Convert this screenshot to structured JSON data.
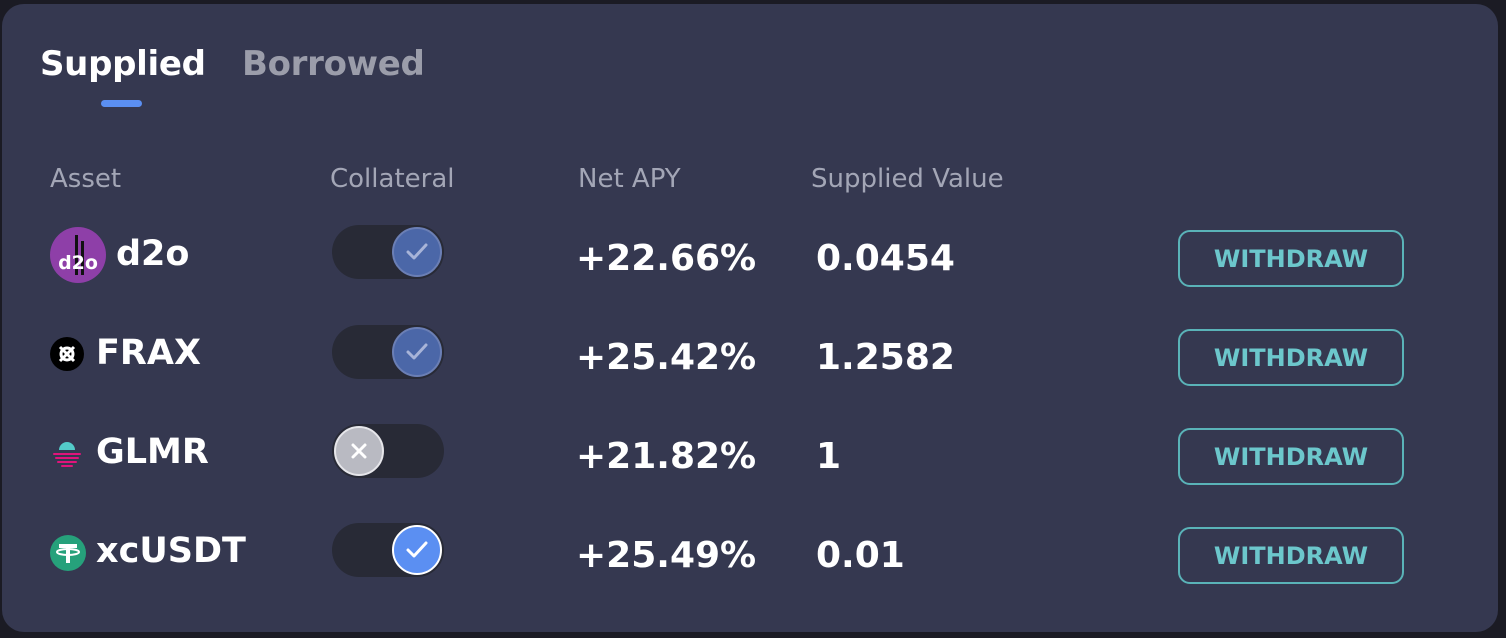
{
  "tabs": [
    {
      "label": "Supplied",
      "active": true
    },
    {
      "label": "Borrowed",
      "active": false
    }
  ],
  "columns": [
    "Asset",
    "Collateral",
    "Net APY",
    "Supplied Value"
  ],
  "rows": [
    {
      "asset": "d2o",
      "icon": "d2o-icon",
      "collateral": "on-dim",
      "net_apy": "+22.66%",
      "supplied_value": "0.0454",
      "action": "WITHDRAW"
    },
    {
      "asset": "FRAX",
      "icon": "frax-icon",
      "collateral": "on-dim",
      "net_apy": "+25.42%",
      "supplied_value": "1.2582",
      "action": "WITHDRAW"
    },
    {
      "asset": "GLMR",
      "icon": "glmr-icon",
      "collateral": "off",
      "net_apy": "+21.82%",
      "supplied_value": "1",
      "action": "WITHDRAW"
    },
    {
      "asset": "xcUSDT",
      "icon": "usdt-icon",
      "collateral": "on",
      "net_apy": "+25.49%",
      "supplied_value": "0.01",
      "action": "WITHDRAW"
    }
  ],
  "colors": {
    "panel": "#353850",
    "accent": "#5b8ff2",
    "withdraw": "#6cc7cc",
    "d2o": "#8e3fa8",
    "usdt": "#26a17b"
  }
}
